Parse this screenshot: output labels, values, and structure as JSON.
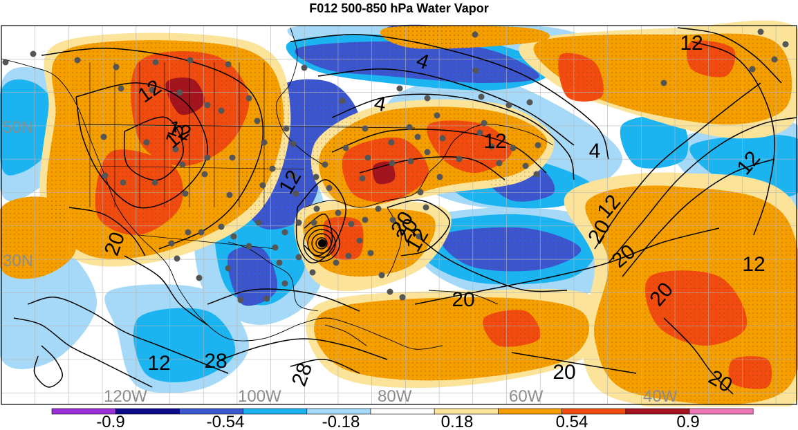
{
  "title": "F012 500-850 hPa Water Vapor",
  "map": {
    "lat_labels": [
      "50N",
      "30N"
    ],
    "lon_labels": [
      "120W",
      "100W",
      "80W",
      "60W",
      "40W"
    ],
    "label_color": "#8c8c8c",
    "contour_labels": [
      "12",
      "12",
      "4",
      "4",
      "12",
      "4",
      "12",
      "12",
      "12",
      "12",
      "20",
      "12",
      "20",
      "20",
      "20",
      "12",
      "20",
      "20",
      "20",
      "28",
      "12",
      "28",
      "20",
      "20",
      "12"
    ],
    "colors": {
      "ocean_white": "#ffffff",
      "light_blue": "#a6d9f7",
      "cyan": "#1cb4f0",
      "blue": "#3a57d1",
      "dark_blue": "#0d0d8c",
      "purple": "#9b30d9",
      "light_yellow": "#fbe39a",
      "orange": "#f59e00",
      "red_orange": "#f24b0f",
      "dark_red": "#a3141e",
      "pink": "#ee77b8",
      "contour": "#000000",
      "station": "#555555"
    }
  },
  "colorbar": {
    "colors": [
      "#9b30d9",
      "#0d0d8c",
      "#3a57d1",
      "#1cb4f0",
      "#a6d9f7",
      "#ffffff",
      "#fbe39a",
      "#f59e00",
      "#f24b0f",
      "#a3141e",
      "#ee77b8"
    ],
    "tick_labels": [
      "-0.9",
      "-0.54",
      "-0.18",
      "0.18",
      "0.54",
      "0.9"
    ]
  }
}
